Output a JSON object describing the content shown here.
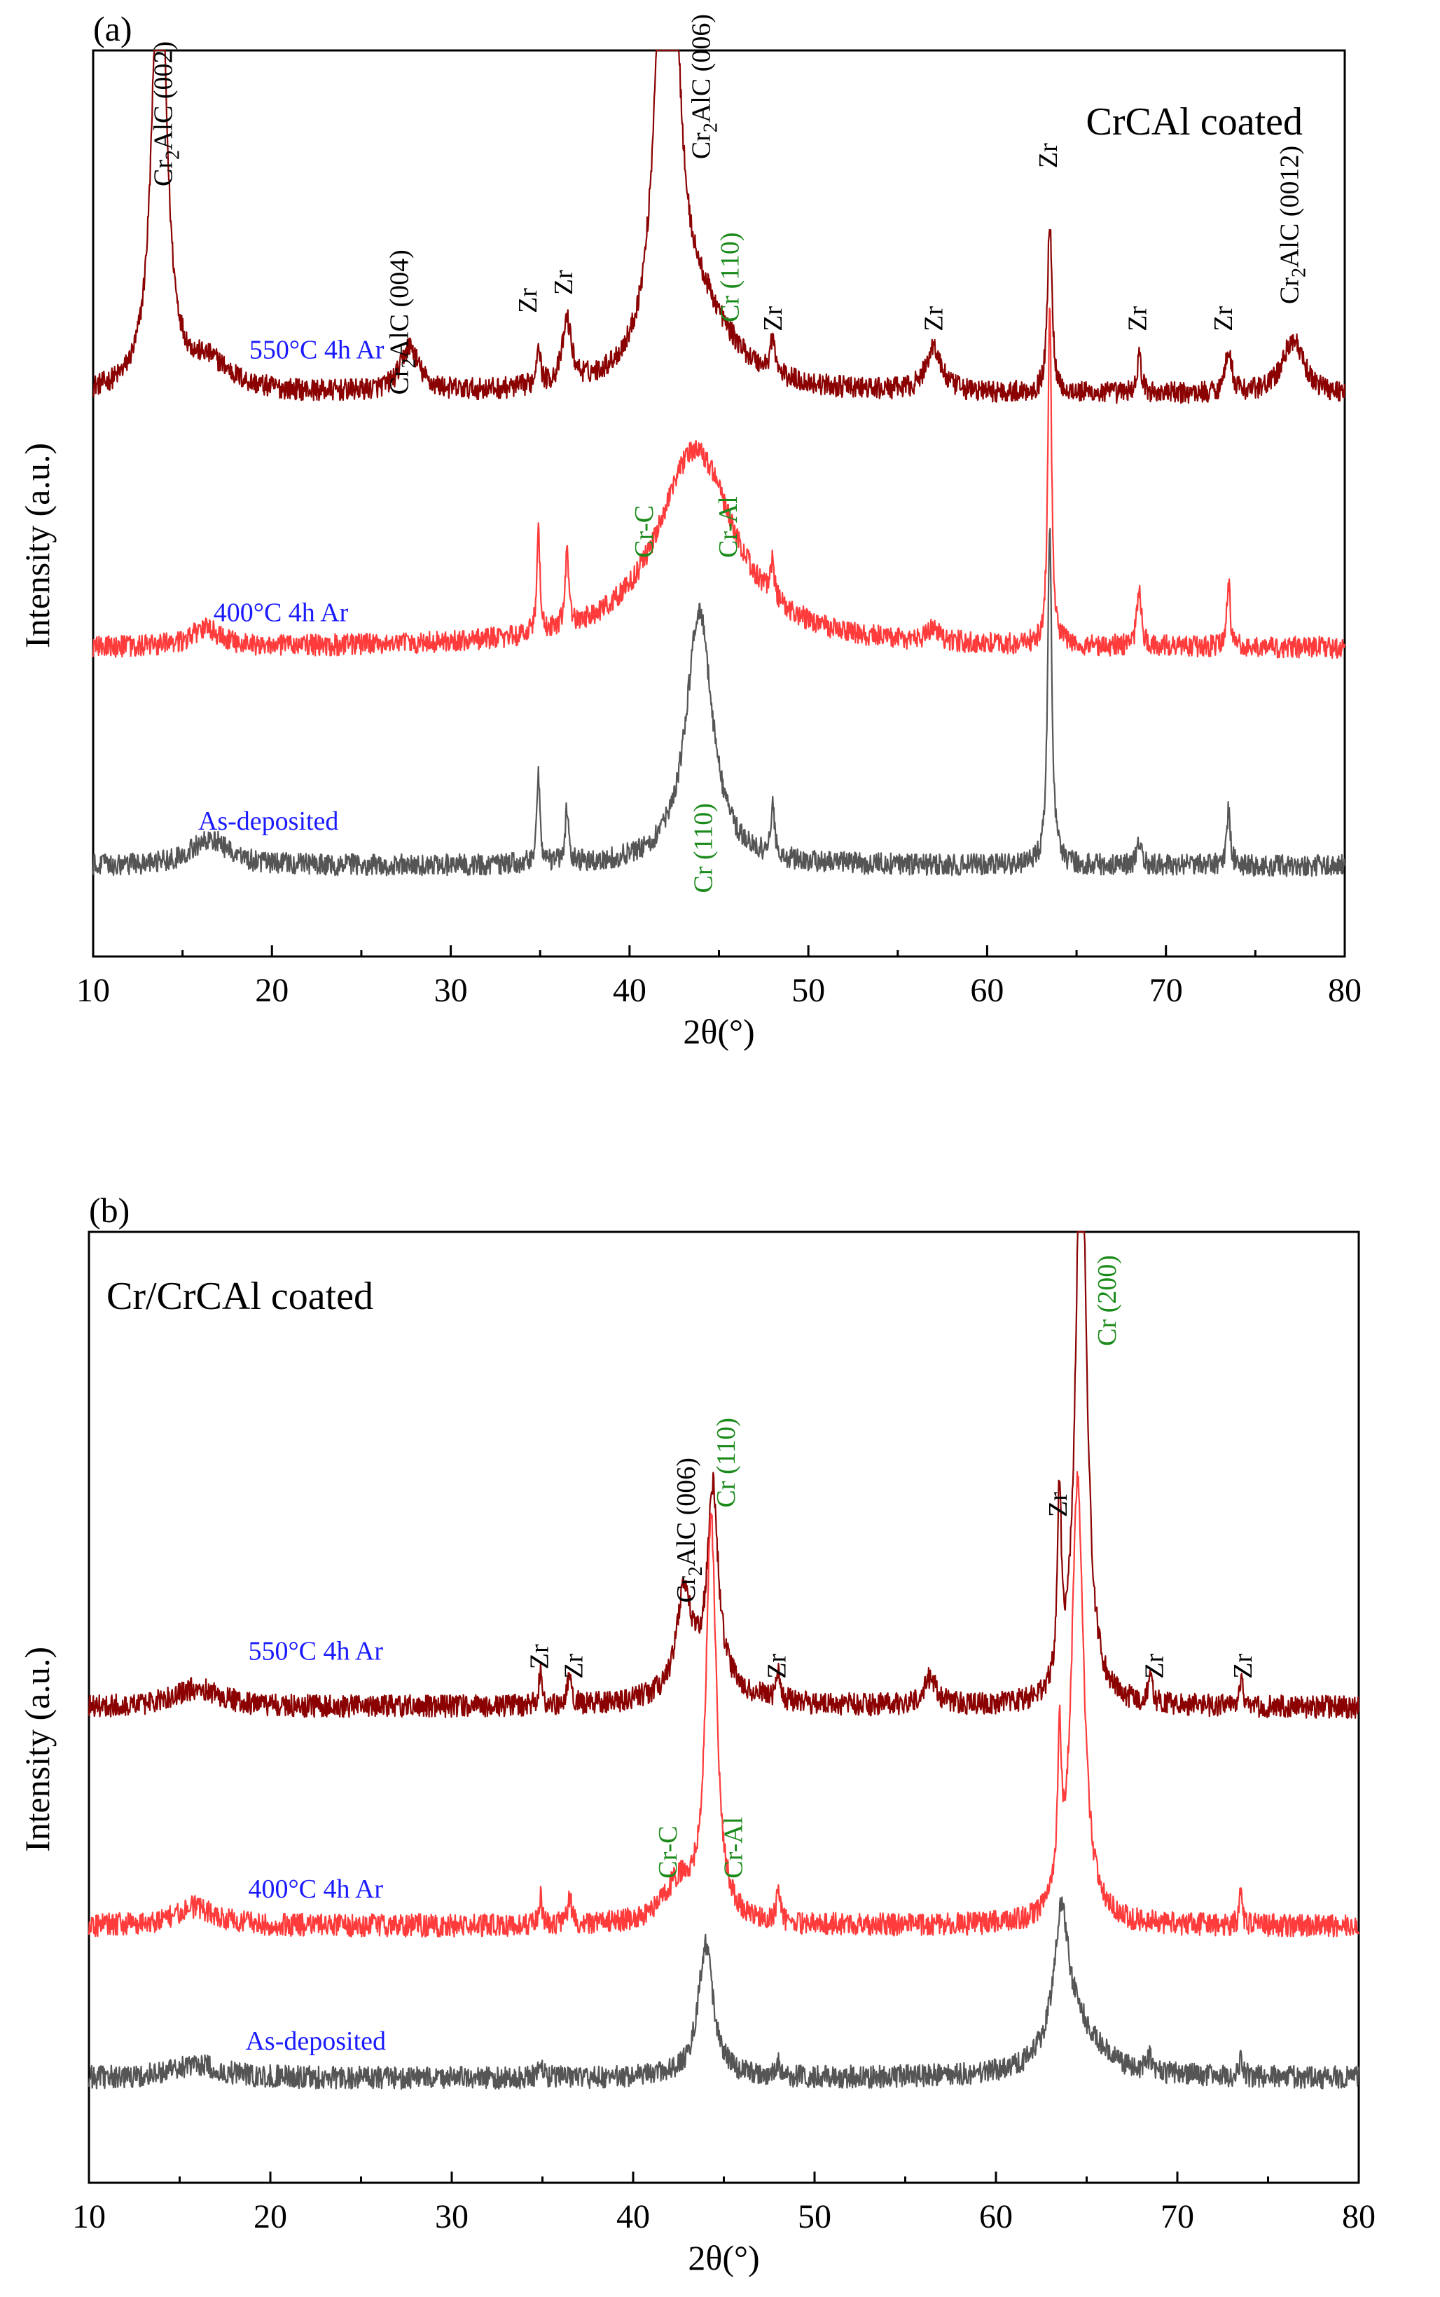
{
  "chart_data": [
    {
      "panel": "(a)",
      "type": "line",
      "title": "CrCAl coated",
      "xlabel": "2θ(°)",
      "ylabel": "Intensity (a.u.)",
      "xlim": [
        10,
        80
      ],
      "xticks": [
        10,
        20,
        30,
        40,
        50,
        60,
        70,
        80
      ],
      "colors": {
        "550": "#8b0000",
        "400": "#ff3b3b",
        "as": "#555555",
        "blue": "#1a1aff",
        "green": "#1a8a1a"
      },
      "series": [
        {
          "name": "550°C 4h Ar",
          "color": "#8b0000",
          "baseline": 0.62,
          "noise": 0.012,
          "peaks": [
            {
              "x": 13.7,
              "h": 0.55,
              "w": 0.45
            },
            {
              "x": 16.5,
              "h": 0.03,
              "w": 1.5
            },
            {
              "x": 27.7,
              "h": 0.05,
              "w": 0.6
            },
            {
              "x": 34.9,
              "h": 0.05,
              "w": 0.12
            },
            {
              "x": 36.5,
              "h": 0.07,
              "w": 0.3
            },
            {
              "x": 42.1,
              "h": 0.79,
              "w": 0.55
            },
            {
              "x": 44.0,
              "h": 0.08,
              "w": 2.2
            },
            {
              "x": 48.0,
              "h": 0.04,
              "w": 0.15
            },
            {
              "x": 57.0,
              "h": 0.05,
              "w": 0.5
            },
            {
              "x": 63.5,
              "h": 0.19,
              "w": 0.15
            },
            {
              "x": 68.5,
              "h": 0.04,
              "w": 0.15
            },
            {
              "x": 73.5,
              "h": 0.05,
              "w": 0.2
            },
            {
              "x": 77.1,
              "h": 0.06,
              "w": 0.7
            }
          ]
        },
        {
          "name": "400°C 4h Ar",
          "color": "#ff3b3b",
          "baseline": 0.34,
          "noise": 0.012,
          "peaks": [
            {
              "x": 16.3,
              "h": 0.02,
              "w": 1.0
            },
            {
              "x": 34.9,
              "h": 0.12,
              "w": 0.1
            },
            {
              "x": 36.5,
              "h": 0.08,
              "w": 0.12
            },
            {
              "x": 43.7,
              "h": 0.22,
              "w": 2.6
            },
            {
              "x": 48.0,
              "h": 0.04,
              "w": 0.12
            },
            {
              "x": 57.0,
              "h": 0.015,
              "w": 0.4
            },
            {
              "x": 63.5,
              "h": 0.38,
              "w": 0.12
            },
            {
              "x": 68.5,
              "h": 0.06,
              "w": 0.15
            },
            {
              "x": 73.5,
              "h": 0.07,
              "w": 0.12
            }
          ]
        },
        {
          "name": "As-deposited",
          "color": "#555555",
          "baseline": 0.1,
          "noise": 0.012,
          "peaks": [
            {
              "x": 16.5,
              "h": 0.03,
              "w": 1.2
            },
            {
              "x": 34.9,
              "h": 0.1,
              "w": 0.1
            },
            {
              "x": 36.5,
              "h": 0.06,
              "w": 0.12
            },
            {
              "x": 43.9,
              "h": 0.28,
              "w": 0.9
            },
            {
              "x": 48.0,
              "h": 0.06,
              "w": 0.12
            },
            {
              "x": 63.5,
              "h": 0.37,
              "w": 0.14
            },
            {
              "x": 68.5,
              "h": 0.03,
              "w": 0.15
            },
            {
              "x": 73.5,
              "h": 0.06,
              "w": 0.12
            }
          ]
        }
      ],
      "annotations": [
        {
          "kind": "series",
          "text": "550°C 4h Ar",
          "x": 22.5,
          "y": 0.66,
          "color": "#1a1aff",
          "rot": 0
        },
        {
          "kind": "series",
          "text": "400°C 4h Ar",
          "x": 20.5,
          "y": 0.37,
          "color": "#1a1aff",
          "rot": 0
        },
        {
          "kind": "series",
          "text": "As-deposited",
          "x": 19.8,
          "y": 0.14,
          "color": "#1a1aff",
          "rot": 0
        },
        {
          "kind": "peak",
          "parts": [
            "Cr",
            "2",
            "AlC (002)"
          ],
          "x": 14.4,
          "y": 0.85,
          "color": "#000000",
          "rot": -90
        },
        {
          "kind": "peak",
          "parts": [
            "Cr",
            "2",
            "AlC (004)"
          ],
          "x": 27.6,
          "y": 0.62,
          "color": "#000000",
          "rot": -90
        },
        {
          "kind": "peak",
          "parts": [
            "Cr",
            "2",
            "AlC (006)"
          ],
          "x": 44.5,
          "y": 0.88,
          "color": "#000000",
          "rot": -90
        },
        {
          "kind": "peak",
          "parts": [
            "Cr",
            "2",
            "AlC (0012)"
          ],
          "x": 77.4,
          "y": 0.72,
          "color": "#000000",
          "rot": -90
        },
        {
          "kind": "peak",
          "parts": [
            "Zr"
          ],
          "x": 34.8,
          "y": 0.71,
          "color": "#000000",
          "rot": -90
        },
        {
          "kind": "peak",
          "parts": [
            "Zr"
          ],
          "x": 36.8,
          "y": 0.73,
          "color": "#000000",
          "rot": -90
        },
        {
          "kind": "peak",
          "parts": [
            "Zr"
          ],
          "x": 48.5,
          "y": 0.69,
          "color": "#000000",
          "rot": -90
        },
        {
          "kind": "peak",
          "parts": [
            "Zr"
          ],
          "x": 57.5,
          "y": 0.69,
          "color": "#000000",
          "rot": -90
        },
        {
          "kind": "peak",
          "parts": [
            "Zr"
          ],
          "x": 63.9,
          "y": 0.87,
          "color": "#000000",
          "rot": -90
        },
        {
          "kind": "peak",
          "parts": [
            "Zr"
          ],
          "x": 68.9,
          "y": 0.69,
          "color": "#000000",
          "rot": -90
        },
        {
          "kind": "peak",
          "parts": [
            "Zr"
          ],
          "x": 73.7,
          "y": 0.69,
          "color": "#000000",
          "rot": -90
        },
        {
          "kind": "peak",
          "parts": [
            "Cr (110)"
          ],
          "x": 46.1,
          "y": 0.7,
          "color": "#1a8a1a",
          "rot": -90
        },
        {
          "kind": "peak",
          "parts": [
            "Cr-C"
          ],
          "x": 41.3,
          "y": 0.44,
          "color": "#1a8a1a",
          "rot": -90
        },
        {
          "kind": "peak",
          "parts": [
            "Cr-Al"
          ],
          "x": 46.0,
          "y": 0.44,
          "color": "#1a8a1a",
          "rot": -90
        },
        {
          "kind": "peak",
          "parts": [
            "Cr (110)"
          ],
          "x": 44.6,
          "y": 0.07,
          "color": "#1a8a1a",
          "rot": -90
        }
      ]
    },
    {
      "panel": "(b)",
      "type": "line",
      "title": "Cr/CrCAl coated",
      "xlabel": "2θ(°)",
      "ylabel": "Intensity (a.u.)",
      "xlim": [
        10,
        80
      ],
      "xticks": [
        10,
        20,
        30,
        40,
        50,
        60,
        70,
        80
      ],
      "colors": {
        "550": "#8b0000",
        "400": "#ff3b3b",
        "as": "#555555",
        "blue": "#1a1aff",
        "green": "#1a8a1a"
      },
      "series": [
        {
          "name": "550°C 4h Ar",
          "color": "#8b0000",
          "baseline": 0.5,
          "noise": 0.012,
          "peaks": [
            {
              "x": 16.0,
              "h": 0.02,
              "w": 1.5
            },
            {
              "x": 34.9,
              "h": 0.04,
              "w": 0.1
            },
            {
              "x": 36.5,
              "h": 0.03,
              "w": 0.15
            },
            {
              "x": 42.8,
              "h": 0.1,
              "w": 0.45
            },
            {
              "x": 44.4,
              "h": 0.2,
              "w": 0.35
            },
            {
              "x": 44.0,
              "h": 0.03,
              "w": 2.0
            },
            {
              "x": 48.0,
              "h": 0.03,
              "w": 0.12
            },
            {
              "x": 56.4,
              "h": 0.03,
              "w": 0.4
            },
            {
              "x": 63.5,
              "h": 0.2,
              "w": 0.12
            },
            {
              "x": 64.7,
              "h": 0.65,
              "w": 0.35
            },
            {
              "x": 68.5,
              "h": 0.03,
              "w": 0.12
            },
            {
              "x": 73.5,
              "h": 0.03,
              "w": 0.12
            }
          ]
        },
        {
          "name": "400°C 4h Ar",
          "color": "#ff3b3b",
          "baseline": 0.27,
          "noise": 0.012,
          "peaks": [
            {
              "x": 15.8,
              "h": 0.02,
              "w": 1.3
            },
            {
              "x": 34.9,
              "h": 0.03,
              "w": 0.1
            },
            {
              "x": 36.5,
              "h": 0.03,
              "w": 0.12
            },
            {
              "x": 42.5,
              "h": 0.04,
              "w": 1.0
            },
            {
              "x": 44.3,
              "h": 0.42,
              "w": 0.35
            },
            {
              "x": 48.0,
              "h": 0.03,
              "w": 0.12
            },
            {
              "x": 63.5,
              "h": 0.17,
              "w": 0.12
            },
            {
              "x": 64.5,
              "h": 0.47,
              "w": 0.4
            },
            {
              "x": 73.5,
              "h": 0.035,
              "w": 0.1
            }
          ]
        },
        {
          "name": "As-deposited",
          "color": "#555555",
          "baseline": 0.11,
          "noise": 0.012,
          "peaks": [
            {
              "x": 16.0,
              "h": 0.015,
              "w": 1.5
            },
            {
              "x": 34.9,
              "h": 0.02,
              "w": 0.1
            },
            {
              "x": 44.0,
              "h": 0.14,
              "w": 0.5
            },
            {
              "x": 48.0,
              "h": 0.015,
              "w": 0.12
            },
            {
              "x": 63.6,
              "h": 0.14,
              "w": 0.5
            },
            {
              "x": 64.4,
              "h": 0.05,
              "w": 1.6
            },
            {
              "x": 68.5,
              "h": 0.015,
              "w": 0.15
            },
            {
              "x": 73.5,
              "h": 0.02,
              "w": 0.12
            }
          ]
        }
      ],
      "annotations": [
        {
          "kind": "series",
          "text": "550°C 4h Ar",
          "x": 22.5,
          "y": 0.55,
          "color": "#1a1aff",
          "rot": 0
        },
        {
          "kind": "series",
          "text": "400°C 4h Ar",
          "x": 22.5,
          "y": 0.3,
          "color": "#1a1aff",
          "rot": 0
        },
        {
          "kind": "series",
          "text": "As-deposited",
          "x": 22.5,
          "y": 0.14,
          "color": "#1a1aff",
          "rot": 0
        },
        {
          "kind": "peak",
          "parts": [
            "Zr"
          ],
          "x": 35.3,
          "y": 0.54,
          "color": "#000000",
          "rot": -90
        },
        {
          "kind": "peak",
          "parts": [
            "Zr"
          ],
          "x": 37.2,
          "y": 0.53,
          "color": "#000000",
          "rot": -90
        },
        {
          "kind": "peak",
          "parts": [
            "Zr"
          ],
          "x": 48.4,
          "y": 0.53,
          "color": "#000000",
          "rot": -90
        },
        {
          "kind": "peak",
          "parts": [
            "Zr"
          ],
          "x": 63.9,
          "y": 0.7,
          "color": "#000000",
          "rot": -90
        },
        {
          "kind": "peak",
          "parts": [
            "Zr"
          ],
          "x": 69.2,
          "y": 0.53,
          "color": "#000000",
          "rot": -90
        },
        {
          "kind": "peak",
          "parts": [
            "Zr"
          ],
          "x": 74.1,
          "y": 0.53,
          "color": "#000000",
          "rot": -90
        },
        {
          "kind": "peak",
          "parts": [
            "Cr",
            "2",
            "AlC (006)"
          ],
          "x": 43.4,
          "y": 0.61,
          "color": "#000000",
          "rot": -90
        },
        {
          "kind": "peak",
          "parts": [
            "Cr (110)"
          ],
          "x": 45.6,
          "y": 0.71,
          "color": "#1a8a1a",
          "rot": -90
        },
        {
          "kind": "peak",
          "parts": [
            "Cr (200)"
          ],
          "x": 66.6,
          "y": 0.88,
          "color": "#1a8a1a",
          "rot": -90
        },
        {
          "kind": "peak",
          "parts": [
            "Cr-C"
          ],
          "x": 42.4,
          "y": 0.32,
          "color": "#1a8a1a",
          "rot": -90
        },
        {
          "kind": "peak",
          "parts": [
            "Cr-Al"
          ],
          "x": 46.0,
          "y": 0.32,
          "color": "#1a8a1a",
          "rot": -90
        }
      ]
    }
  ]
}
